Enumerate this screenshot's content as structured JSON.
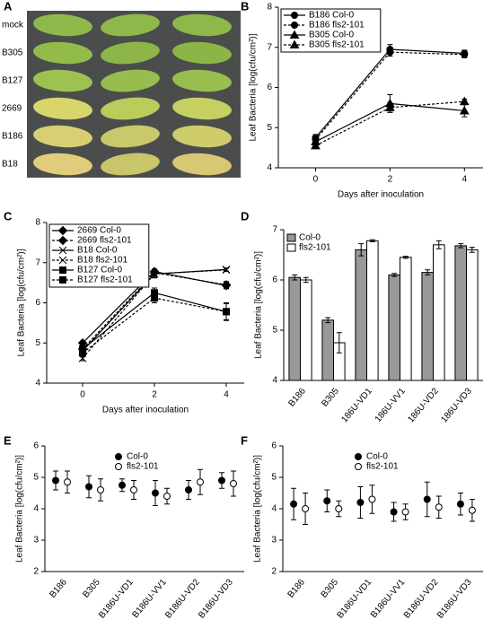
{
  "photo_panel": {
    "label": "A",
    "rows": [
      "mock",
      "B305",
      "B127",
      "2669",
      "B186",
      "B18"
    ]
  },
  "chart_data": [
    {
      "type": "line",
      "panel_label": "B",
      "xlabel": "Days after inoculation",
      "ylabel": "Leaf Bacteria [log(cfu/cm²)]",
      "x": [
        0,
        2,
        4
      ],
      "xlim": [
        -1,
        4.5
      ],
      "xticks": [
        0,
        2,
        4
      ],
      "ylim": [
        4,
        8
      ],
      "yticks": [
        4,
        5,
        6,
        7,
        8
      ],
      "series": [
        {
          "name": "B186 Col-0",
          "color": "#000000",
          "marker": "circle",
          "dashed": false,
          "values": [
            4.75,
            6.95,
            6.85
          ],
          "errors": [
            0.08,
            0.12,
            0.08
          ]
        },
        {
          "name": "B186 fls2-101",
          "color": "#000000",
          "marker": "circle",
          "dashed": true,
          "values": [
            4.7,
            6.88,
            6.82
          ],
          "errors": [
            0.08,
            0.1,
            0.08
          ]
        },
        {
          "name": "B305 Col-0",
          "color": "#000000",
          "marker": "triangle",
          "dashed": false,
          "values": [
            4.65,
            5.6,
            5.42
          ],
          "errors": [
            0.08,
            0.22,
            0.15
          ]
        },
        {
          "name": "B305 fls2-101",
          "color": "#000000",
          "marker": "triangle",
          "dashed": true,
          "values": [
            4.55,
            5.5,
            5.65
          ],
          "errors": [
            0.06,
            0.12,
            0.06
          ]
        }
      ]
    },
    {
      "type": "line",
      "panel_label": "C",
      "xlabel": "Days after inoculation",
      "ylabel": "Leaf Bacteria [log(cfu/cm²)]",
      "x": [
        0,
        2,
        4
      ],
      "xlim": [
        -1,
        4.5
      ],
      "xticks": [
        0,
        2,
        4
      ],
      "ylim": [
        4,
        8
      ],
      "yticks": [
        4,
        5,
        6,
        7,
        8
      ],
      "series": [
        {
          "name": "2669 Col-0",
          "color": "#000000",
          "marker": "diamond",
          "dashed": false,
          "values": [
            5.0,
            6.78,
            6.43
          ],
          "errors": [
            0.05,
            0.06,
            0.08
          ]
        },
        {
          "name": "2669 fls2-101",
          "color": "#000000",
          "marker": "diamond",
          "dashed": true,
          "values": [
            4.85,
            6.75,
            6.45
          ],
          "errors": [
            0.05,
            0.08,
            0.08
          ]
        },
        {
          "name": "B18 Col-0",
          "color": "#000000",
          "marker": "x",
          "dashed": false,
          "values": [
            4.8,
            6.72,
            6.83
          ],
          "errors": [
            0.05,
            0.08,
            0.04
          ]
        },
        {
          "name": "B18 fls2-101",
          "color": "#000000",
          "marker": "x",
          "dashed": true,
          "values": [
            4.62,
            6.72,
            6.82
          ],
          "errors": [
            0.06,
            0.1,
            0.04
          ]
        },
        {
          "name": "B127 Col-0",
          "color": "#000000",
          "marker": "square",
          "dashed": false,
          "values": [
            4.85,
            6.25,
            5.78
          ],
          "errors": [
            0.12,
            0.12,
            0.2
          ]
        },
        {
          "name": "B127 fls2-101",
          "color": "#000000",
          "marker": "square",
          "dashed": true,
          "values": [
            4.75,
            6.12,
            5.78
          ],
          "errors": [
            0.1,
            0.12,
            0.22
          ]
        }
      ]
    },
    {
      "type": "bar",
      "panel_label": "D",
      "ylabel": "Leaf Bacteria [log(cfu/cm²)]",
      "categories": [
        "B186",
        "B305",
        "186U-VD1",
        "186U-VV1",
        "186U-VD2",
        "186U-VD3"
      ],
      "ylim": [
        4,
        7
      ],
      "yticks": [
        4,
        5,
        6,
        7
      ],
      "series": [
        {
          "name": "Col-0",
          "color": "#999999",
          "values": [
            6.05,
            5.2,
            6.6,
            6.1,
            6.15,
            6.68
          ],
          "errors": [
            0.05,
            0.05,
            0.12,
            0.03,
            0.05,
            0.04
          ]
        },
        {
          "name": "fls2-101",
          "color": "#ffffff",
          "values": [
            6.0,
            4.75,
            6.78,
            6.45,
            6.7,
            6.6
          ],
          "errors": [
            0.05,
            0.2,
            0.02,
            0.02,
            0.08,
            0.05
          ]
        }
      ]
    },
    {
      "type": "errorbar",
      "panel_label": "E",
      "ylabel": "Leaf Bacteria [log(cfu/cm²)]",
      "categories": [
        "B186",
        "B305",
        "B186U-VD1",
        "B186U-VV1",
        "B186U-VD2",
        "B186U-VD3"
      ],
      "ylim": [
        2,
        6
      ],
      "yticks": [
        2,
        3,
        4,
        5,
        6
      ],
      "series": [
        {
          "name": "Col-0",
          "color": "#000000",
          "filled": true,
          "values": [
            4.9,
            4.7,
            4.75,
            4.5,
            4.6,
            4.9
          ],
          "errors": [
            0.3,
            0.35,
            0.2,
            0.4,
            0.3,
            0.25
          ]
        },
        {
          "name": "fls2-101",
          "color": "#000000",
          "filled": false,
          "values": [
            4.85,
            4.6,
            4.6,
            4.4,
            4.85,
            4.8
          ],
          "errors": [
            0.35,
            0.35,
            0.3,
            0.25,
            0.4,
            0.4
          ]
        }
      ]
    },
    {
      "type": "errorbar",
      "panel_label": "F",
      "ylabel": "Leaf Bacteria [log(cfu/cm²)]",
      "categories": [
        "B186",
        "B305",
        "B186U-VD1",
        "B186U-VV1",
        "B186U-VD2",
        "B186U-VD3"
      ],
      "ylim": [
        2,
        6
      ],
      "yticks": [
        2,
        3,
        4,
        5,
        6
      ],
      "series": [
        {
          "name": "Col-0",
          "color": "#000000",
          "filled": true,
          "values": [
            4.15,
            4.25,
            4.2,
            3.9,
            4.3,
            4.15
          ],
          "errors": [
            0.5,
            0.35,
            0.5,
            0.3,
            0.55,
            0.35
          ]
        },
        {
          "name": "fls2-101",
          "color": "#000000",
          "filled": false,
          "values": [
            4.0,
            4.0,
            4.3,
            3.9,
            4.05,
            3.95
          ],
          "errors": [
            0.5,
            0.25,
            0.45,
            0.25,
            0.35,
            0.35
          ]
        }
      ]
    }
  ]
}
